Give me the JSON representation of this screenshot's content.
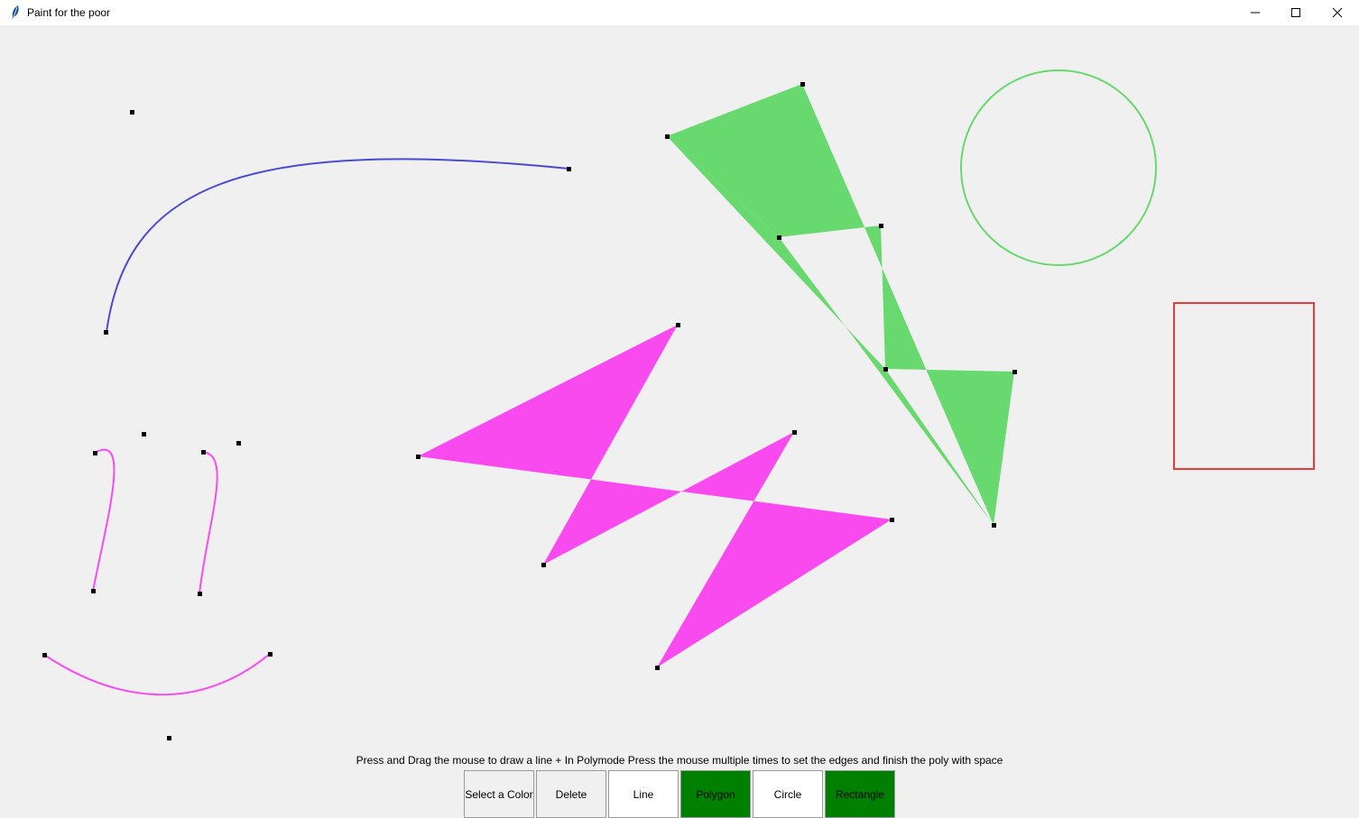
{
  "window": {
    "title": "Paint for the poor"
  },
  "instructions": "Press and Drag the mouse to draw a line + In Polymode Press the mouse multiple times to set the edges and finish the poly with space",
  "toolbar": {
    "select_color": "Select a Color",
    "delete": "Delete",
    "line": "Line",
    "polygon": "Polygon",
    "circle": "Circle",
    "rectangle": "Rectangle"
  },
  "colors": {
    "blue_curve": "#4a4ad6",
    "magenta": "#f94af0",
    "green": "#68d96e",
    "red": "#e83a3a",
    "toggle_green": "#008000"
  }
}
